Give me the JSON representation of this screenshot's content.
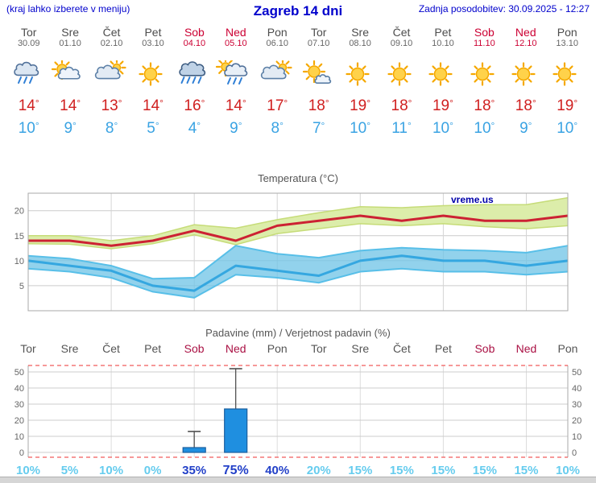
{
  "header": {
    "left_note": "(kraj lahko izberete v meniju)",
    "title": "Zagreb 14 dni",
    "updated": "Zadnja posodobitev: 30.09.2025 - 12:27"
  },
  "watermark": "vreme.us",
  "colors": {
    "accent_blue": "#0000cc",
    "weekend_red": "#cc0033",
    "high_temp_red": "#d02020",
    "low_temp_blue": "#3aa3e3",
    "prob_low_cyan": "#66ccee",
    "prob_high_blue": "#2240c8",
    "bar_fill_blue": "#1f8fe0",
    "temp_band_green": "#dcedaa",
    "temp_band_blue": "#6ec3e6"
  },
  "days": [
    {
      "name": "Tor",
      "date": "30.09",
      "weekend": false,
      "icon": "rain",
      "high": 14,
      "low": 10,
      "prob": "10%",
      "prob_strong": false,
      "prob_emph": false
    },
    {
      "name": "Sre",
      "date": "01.10",
      "weekend": false,
      "icon": "partly-cloudy",
      "high": 14,
      "low": 9,
      "prob": "5%",
      "prob_strong": false,
      "prob_emph": false
    },
    {
      "name": "Čet",
      "date": "02.10",
      "weekend": false,
      "icon": "mostly-cloudy",
      "high": 13,
      "low": 8,
      "prob": "10%",
      "prob_strong": false,
      "prob_emph": false
    },
    {
      "name": "Pet",
      "date": "03.10",
      "weekend": false,
      "icon": "sunny",
      "high": 14,
      "low": 5,
      "prob": "0%",
      "prob_strong": false,
      "prob_emph": false
    },
    {
      "name": "Sob",
      "date": "04.10",
      "weekend": true,
      "icon": "rain-heavy",
      "high": 16,
      "low": 4,
      "prob": "35%",
      "prob_strong": true,
      "prob_emph": false
    },
    {
      "name": "Ned",
      "date": "05.10",
      "weekend": true,
      "icon": "showers",
      "high": 14,
      "low": 9,
      "prob": "75%",
      "prob_strong": true,
      "prob_emph": true
    },
    {
      "name": "Pon",
      "date": "06.10",
      "weekend": false,
      "icon": "mostly-cloudy",
      "high": 17,
      "low": 8,
      "prob": "40%",
      "prob_strong": true,
      "prob_emph": false
    },
    {
      "name": "Tor",
      "date": "07.10",
      "weekend": false,
      "icon": "mostly-sunny",
      "high": 18,
      "low": 7,
      "prob": "20%",
      "prob_strong": false,
      "prob_emph": false
    },
    {
      "name": "Sre",
      "date": "08.10",
      "weekend": false,
      "icon": "sunny",
      "high": 19,
      "low": 10,
      "prob": "15%",
      "prob_strong": false,
      "prob_emph": false
    },
    {
      "name": "Čet",
      "date": "09.10",
      "weekend": false,
      "icon": "sunny",
      "high": 18,
      "low": 11,
      "prob": "15%",
      "prob_strong": false,
      "prob_emph": false
    },
    {
      "name": "Pet",
      "date": "10.10",
      "weekend": false,
      "icon": "sunny",
      "high": 19,
      "low": 10,
      "prob": "15%",
      "prob_strong": false,
      "prob_emph": false
    },
    {
      "name": "Sob",
      "date": "11.10",
      "weekend": true,
      "icon": "sunny",
      "high": 18,
      "low": 10,
      "prob": "15%",
      "prob_strong": false,
      "prob_emph": false
    },
    {
      "name": "Ned",
      "date": "12.10",
      "weekend": true,
      "icon": "sunny",
      "high": 18,
      "low": 9,
      "prob": "15%",
      "prob_strong": false,
      "prob_emph": false
    },
    {
      "name": "Pon",
      "date": "13.10",
      "weekend": false,
      "icon": "sunny",
      "high": 19,
      "low": 10,
      "prob": "10%",
      "prob_strong": false,
      "prob_emph": false
    }
  ],
  "chart_data": [
    {
      "type": "line",
      "title": "Temperatura (°C)",
      "watermark": "vreme.us",
      "categories": [
        "Tor",
        "Sre",
        "Čet",
        "Pet",
        "Sob",
        "Ned",
        "Pon",
        "Tor",
        "Sre",
        "Čet",
        "Pet",
        "Sob",
        "Ned",
        "Pon"
      ],
      "series": [
        {
          "name": "t-max",
          "color": "#cc2233",
          "values": [
            14,
            14,
            13,
            14,
            16,
            14,
            17,
            18,
            19,
            18,
            19,
            18,
            18,
            19
          ]
        },
        {
          "name": "t-max-upper",
          "color": "#c6dc78",
          "values": [
            15,
            15,
            14,
            15,
            17.2,
            16.5,
            18.2,
            19.6,
            20.8,
            20.6,
            21,
            21.2,
            21.2,
            22.6
          ]
        },
        {
          "name": "t-max-lower",
          "color": "#c6dc78",
          "values": [
            13.4,
            13.3,
            12.4,
            13.4,
            15.2,
            13.2,
            15.4,
            16.4,
            17.4,
            17,
            17.4,
            16.8,
            16.4,
            17
          ]
        },
        {
          "name": "t-min",
          "color": "#35a7e0",
          "values": [
            10,
            9,
            8,
            5,
            4,
            9,
            8,
            7,
            10,
            11,
            10,
            10,
            9,
            10
          ]
        },
        {
          "name": "t-min-upper",
          "color": "#58bfe8",
          "values": [
            11,
            10.4,
            9,
            6.4,
            6.6,
            13,
            11.4,
            10.6,
            12,
            12.6,
            12.2,
            12,
            11.6,
            13
          ]
        },
        {
          "name": "t-min-lower",
          "color": "#58bfe8",
          "values": [
            8.4,
            7.8,
            6.6,
            3.8,
            2.6,
            7.2,
            6.6,
            5.6,
            7.8,
            8.4,
            7.8,
            7.8,
            7.2,
            7.8
          ]
        }
      ],
      "ylim": [
        0,
        23.5
      ],
      "yticks": [
        5,
        10,
        15,
        20
      ],
      "grid": true,
      "legend": "none"
    },
    {
      "type": "bar",
      "title": "Padavine (mm) / Verjetnost padavin (%)",
      "categories": [
        "Tor",
        "Sre",
        "Čet",
        "Pet",
        "Sob",
        "Ned",
        "Pon",
        "Tor",
        "Sre",
        "Čet",
        "Pet",
        "Sob",
        "Ned",
        "Pon"
      ],
      "values": [
        0,
        0,
        0,
        0,
        3,
        27,
        0,
        0,
        0,
        0,
        0,
        0,
        0,
        0
      ],
      "whisker_max": [
        0,
        0,
        0,
        0,
        13,
        52,
        0,
        0,
        0,
        0,
        0,
        0,
        0,
        0
      ],
      "probabilities_pct": [
        10,
        5,
        10,
        0,
        35,
        75,
        40,
        20,
        15,
        15,
        15,
        15,
        15,
        10
      ],
      "ylim": [
        0,
        50
      ],
      "yticks": [
        0,
        10,
        20,
        30,
        40,
        50
      ],
      "grid": true,
      "legend": "none"
    }
  ]
}
